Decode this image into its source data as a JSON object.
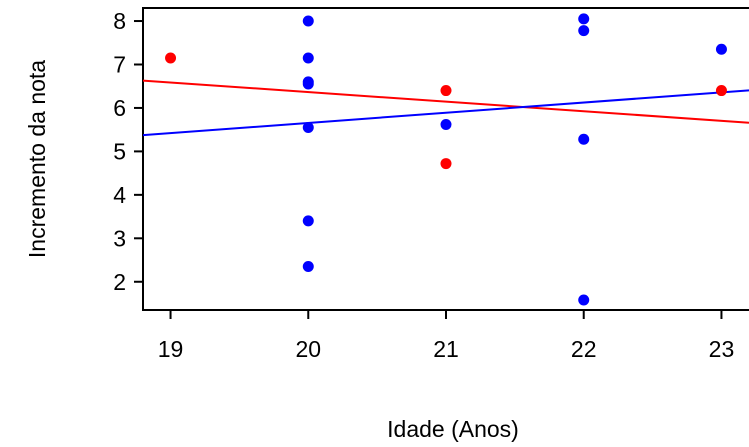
{
  "chart_data": {
    "type": "scatter",
    "xlabel": "Idade (Anos)",
    "ylabel": "Incremento da nota",
    "xlim": [
      18.8,
      23.2
    ],
    "ylim": [
      1.35,
      8.3
    ],
    "x_ticks": [
      19,
      20,
      21,
      22,
      23
    ],
    "y_ticks": [
      2,
      3,
      4,
      5,
      6,
      7,
      8
    ],
    "grid": false,
    "series": [
      {
        "color": "#ff0000",
        "points": [
          {
            "x": 19,
            "y": 7.15
          },
          {
            "x": 21,
            "y": 6.4
          },
          {
            "x": 21,
            "y": 4.72
          },
          {
            "x": 23,
            "y": 6.4
          }
        ],
        "trend": {
          "type": "line",
          "intercept": 10.775,
          "slope": -0.2205
        }
      },
      {
        "color": "#0000ff",
        "points": [
          {
            "x": 20,
            "y": 8.0
          },
          {
            "x": 20,
            "y": 7.15
          },
          {
            "x": 20,
            "y": 6.6
          },
          {
            "x": 20,
            "y": 6.55
          },
          {
            "x": 20,
            "y": 5.55
          },
          {
            "x": 20,
            "y": 3.4
          },
          {
            "x": 20,
            "y": 2.35
          },
          {
            "x": 21,
            "y": 5.62
          },
          {
            "x": 22,
            "y": 8.05
          },
          {
            "x": 22,
            "y": 7.78
          },
          {
            "x": 22,
            "y": 5.28
          },
          {
            "x": 22,
            "y": 1.58
          },
          {
            "x": 23,
            "y": 7.35
          }
        ],
        "trend": {
          "type": "line",
          "intercept": 0.965,
          "slope": 0.2345
        }
      }
    ]
  }
}
